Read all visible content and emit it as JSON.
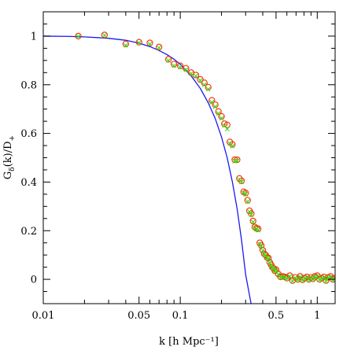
{
  "chart_data": {
    "type": "scatter",
    "xlabel": "k [h Mpc⁻¹]",
    "ylabel": {
      "base": "G",
      "sub1": "δ",
      "mid": "(k)/D",
      "sub2": "+"
    },
    "xscale": "log",
    "xlim": [
      0.01,
      1.35
    ],
    "ylim": [
      -0.1,
      1.1
    ],
    "grid": false,
    "x_ticks": [
      {
        "value": 0.01,
        "label": "0.01"
      },
      {
        "value": 0.05,
        "label": "0.05"
      },
      {
        "value": 0.1,
        "label": "0.1"
      },
      {
        "value": 0.5,
        "label": "0.5"
      },
      {
        "value": 1,
        "label": "1"
      }
    ],
    "y_ticks": [
      {
        "value": 0,
        "label": "0"
      },
      {
        "value": 0.2,
        "label": "0.2"
      },
      {
        "value": 0.4,
        "label": "0.4"
      },
      {
        "value": 0.6,
        "label": "0.6"
      },
      {
        "value": 0.8,
        "label": "0.8"
      },
      {
        "value": 1,
        "label": "1"
      }
    ],
    "series": [
      {
        "kind": "line",
        "color": "#1a1aee",
        "x": [
          0.01,
          0.015,
          0.02,
          0.03,
          0.04,
          0.05,
          0.06,
          0.07,
          0.08,
          0.09,
          0.1,
          0.12,
          0.14,
          0.16,
          0.18,
          0.2,
          0.22,
          0.24,
          0.26,
          0.28,
          0.3,
          0.32,
          0.33
        ],
        "y": [
          1.0,
          0.999,
          0.997,
          0.991,
          0.983,
          0.971,
          0.957,
          0.941,
          0.924,
          0.905,
          0.884,
          0.837,
          0.785,
          0.726,
          0.661,
          0.585,
          0.5,
          0.401,
          0.29,
          0.162,
          0.02,
          -0.065,
          -0.105
        ]
      },
      {
        "kind": "marker-circle",
        "color": "#ff2a00",
        "x": [
          0.018,
          0.028,
          0.04,
          0.05,
          0.06,
          0.07,
          0.082,
          0.09,
          0.1,
          0.11,
          0.12,
          0.13,
          0.14,
          0.15,
          0.16,
          0.17,
          0.18,
          0.19,
          0.2,
          0.21,
          0.22,
          0.23,
          0.24,
          0.25,
          0.26,
          0.27,
          0.28,
          0.29,
          0.3,
          0.31,
          0.32,
          0.33,
          0.34,
          0.35,
          0.36,
          0.37,
          0.38,
          0.39,
          0.4,
          0.41,
          0.42,
          0.43,
          0.44,
          0.45,
          0.46,
          0.47,
          0.48,
          0.49,
          0.5,
          0.52,
          0.54,
          0.56,
          0.58,
          0.6,
          0.63,
          0.66,
          0.69,
          0.72,
          0.75,
          0.78,
          0.81,
          0.84,
          0.87,
          0.9,
          0.93,
          0.96,
          1.0,
          1.04,
          1.08,
          1.12,
          1.16,
          1.2,
          1.25,
          1.3,
          1.34
        ],
        "y": [
          1.0,
          1.005,
          0.968,
          0.975,
          0.972,
          0.955,
          0.905,
          0.885,
          0.878,
          0.868,
          0.85,
          0.84,
          0.822,
          0.808,
          0.79,
          0.736,
          0.718,
          0.69,
          0.67,
          0.64,
          0.635,
          0.565,
          0.555,
          0.492,
          0.492,
          0.415,
          0.405,
          0.36,
          0.355,
          0.325,
          0.282,
          0.27,
          0.24,
          0.215,
          0.21,
          0.208,
          0.15,
          0.14,
          0.12,
          0.105,
          0.1,
          0.09,
          0.088,
          0.07,
          0.06,
          0.05,
          0.045,
          0.035,
          0.04,
          0.022,
          0.01,
          0.012,
          0.01,
          0.005,
          0.015,
          -0.005,
          0.008,
          0.0,
          0.012,
          -0.002,
          0.005,
          0.01,
          0.0,
          0.008,
          0.002,
          0.012,
          0.015,
          0.0,
          0.005,
          0.01,
          -0.005,
          0.008,
          0.012,
          0.0,
          0.005
        ]
      },
      {
        "kind": "marker-cross",
        "color": "#33dd11",
        "x": [
          0.018,
          0.028,
          0.04,
          0.05,
          0.06,
          0.07,
          0.082,
          0.09,
          0.1,
          0.11,
          0.12,
          0.13,
          0.14,
          0.15,
          0.16,
          0.17,
          0.18,
          0.19,
          0.2,
          0.21,
          0.22,
          0.23,
          0.24,
          0.25,
          0.26,
          0.27,
          0.28,
          0.29,
          0.3,
          0.31,
          0.32,
          0.33,
          0.34,
          0.35,
          0.36,
          0.37,
          0.38,
          0.39,
          0.4,
          0.41,
          0.42,
          0.43,
          0.44,
          0.45,
          0.46,
          0.47,
          0.48,
          0.49,
          0.5,
          0.52,
          0.54,
          0.56,
          0.58,
          0.6,
          0.63,
          0.66,
          0.69,
          0.72,
          0.75,
          0.78,
          0.81,
          0.84,
          0.87,
          0.9,
          0.93,
          0.96,
          1.0,
          1.04,
          1.08,
          1.12,
          1.16,
          1.2,
          1.25,
          1.3,
          1.34
        ],
        "y": [
          0.998,
          1.003,
          0.962,
          0.972,
          0.968,
          0.952,
          0.9,
          0.878,
          0.872,
          0.862,
          0.846,
          0.836,
          0.818,
          0.8,
          0.782,
          0.728,
          0.71,
          0.682,
          0.662,
          0.632,
          0.618,
          0.558,
          0.548,
          0.486,
          0.488,
          0.41,
          0.4,
          0.355,
          0.35,
          0.32,
          0.278,
          0.266,
          0.236,
          0.212,
          0.206,
          0.202,
          0.145,
          0.136,
          0.118,
          0.102,
          0.098,
          0.088,
          0.085,
          0.068,
          0.058,
          0.048,
          0.043,
          0.033,
          0.038,
          0.02,
          0.008,
          0.01,
          0.008,
          0.003,
          0.012,
          -0.007,
          0.006,
          -0.002,
          0.01,
          -0.004,
          0.003,
          0.008,
          -0.002,
          0.006,
          0.0,
          0.01,
          0.012,
          -0.002,
          0.003,
          0.008,
          -0.007,
          0.006,
          0.01,
          -0.002,
          0.003
        ]
      }
    ]
  }
}
